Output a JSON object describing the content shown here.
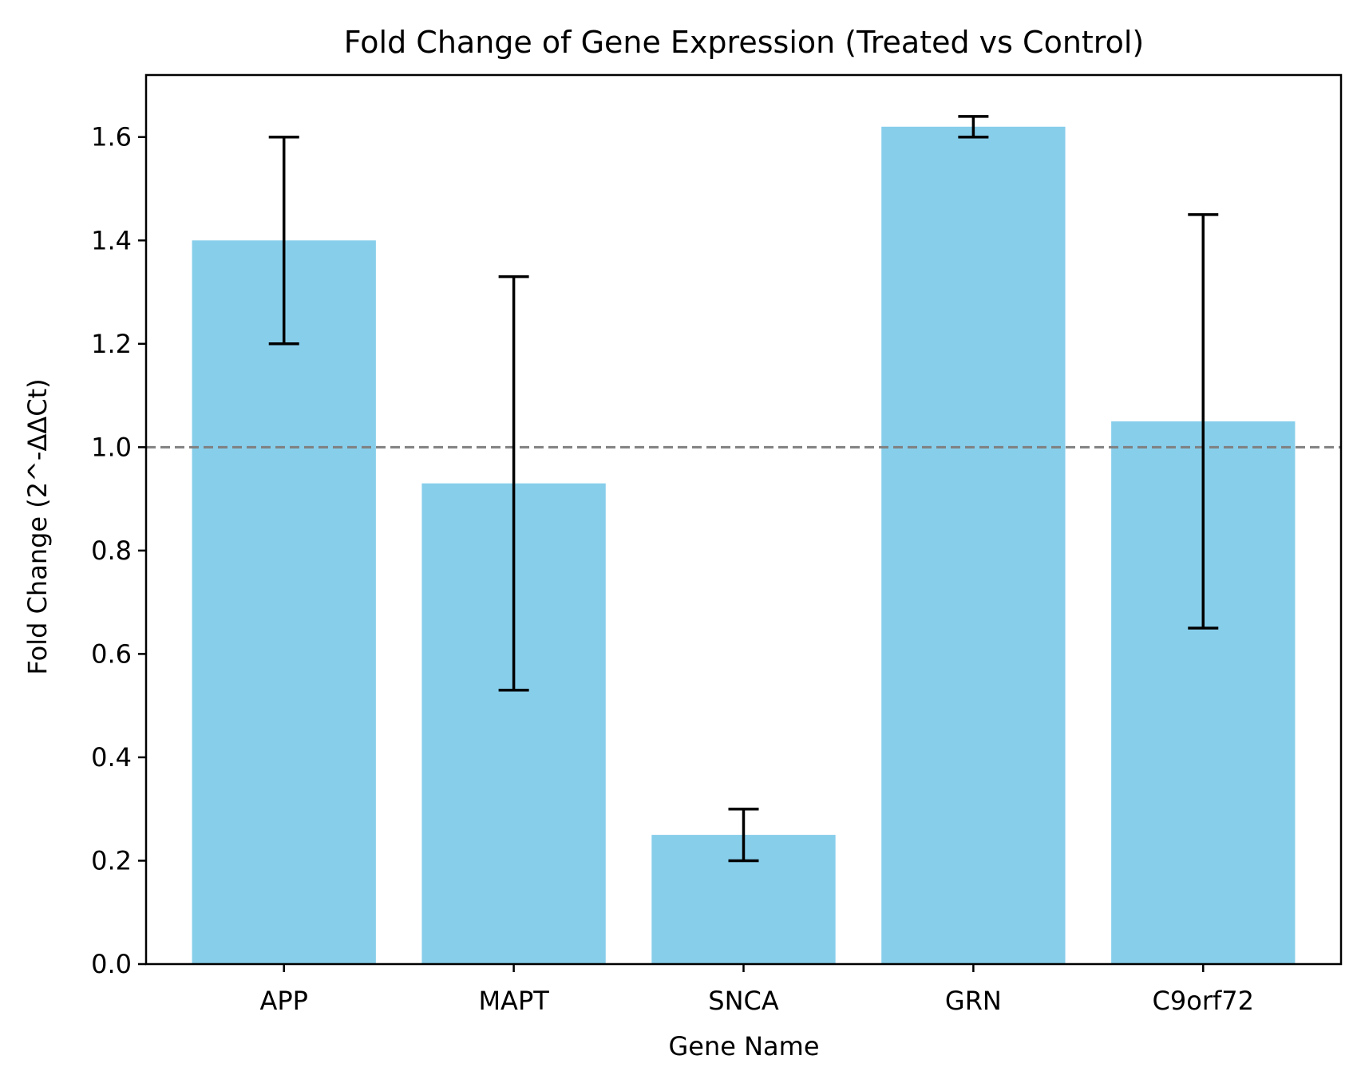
{
  "chart_data": {
    "type": "bar",
    "title": "Fold Change of Gene Expression (Treated vs Control)",
    "xlabel": "Gene Name",
    "ylabel": "Fold Change (2^-ΔΔCt)",
    "categories": [
      "APP",
      "MAPT",
      "SNCA",
      "GRN",
      "C9orf72"
    ],
    "values": [
      1.4,
      0.93,
      0.25,
      1.62,
      1.05
    ],
    "errors": [
      0.2,
      0.4,
      0.05,
      0.02,
      0.4
    ],
    "ylim": [
      0,
      1.72
    ],
    "yticks": [
      0.0,
      0.2,
      0.4,
      0.6,
      0.8,
      1.0,
      1.2,
      1.4,
      1.6
    ],
    "ytick_labels": [
      "0.0",
      "0.2",
      "0.4",
      "0.6",
      "0.8",
      "1.0",
      "1.2",
      "1.4",
      "1.6"
    ],
    "reference_line": {
      "value": 1.0,
      "style": "dashed",
      "color": "#808080"
    },
    "bar_color": "#87CEEB",
    "error_color": "#000000",
    "grid": false,
    "legend": "none"
  }
}
